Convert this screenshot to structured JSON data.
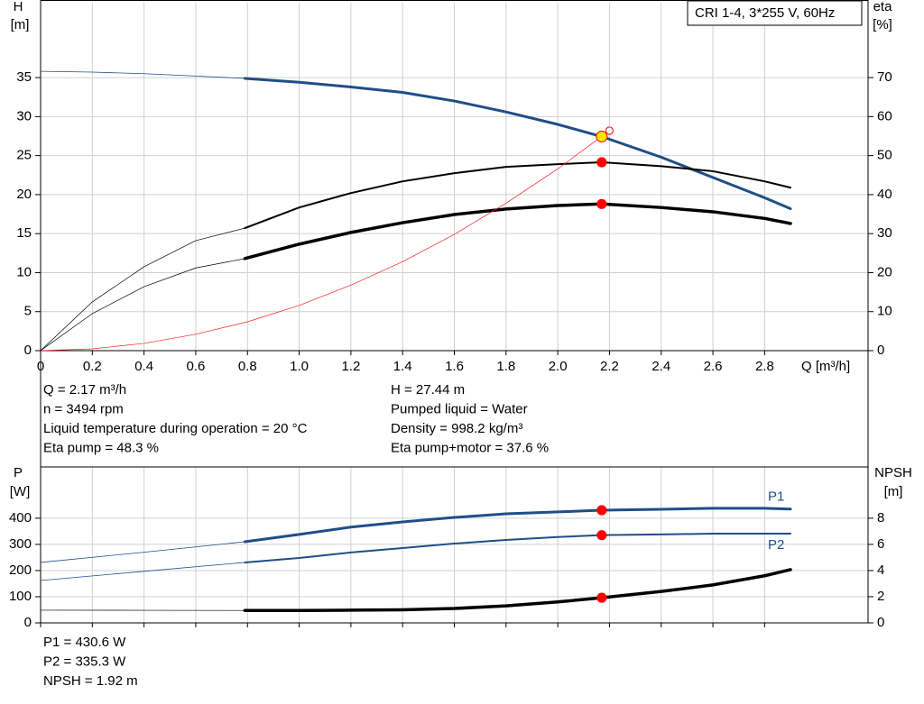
{
  "chart_data": [
    {
      "type": "line",
      "title": "CRI 1-4, 3*255 V, 60Hz",
      "ylabel": [
        "H",
        "[m]"
      ],
      "y2label": [
        "eta",
        "[%]"
      ],
      "xlabel": "Q [m³/h]",
      "xlim": [
        0,
        3.2
      ],
      "xticks": [
        0,
        0.2,
        0.4,
        0.6,
        0.8,
        {
          "value": 1,
          "label": "1.0"
        },
        1.2,
        1.4,
        1.6,
        1.8,
        {
          "value": 2,
          "label": "2.0"
        },
        2.2,
        2.4,
        2.6,
        2.8
      ],
      "show_xtick_labels": true,
      "ylim": [
        0,
        44.6
      ],
      "yticks": [
        0,
        5,
        10,
        15,
        20,
        25,
        30,
        35
      ],
      "y2lim": [
        0,
        89.2
      ],
      "y2ticks": [
        0,
        10,
        20,
        30,
        40,
        50,
        60,
        70
      ],
      "grid": true,
      "series": [
        {
          "color": "#1f4e87",
          "width": 0.8,
          "x": [
            0,
            0.2,
            0.4,
            0.6,
            0.79
          ],
          "values": [
            35.8,
            35.7,
            35.5,
            35.2,
            34.9
          ]
        },
        {
          "color": "#1f4e87",
          "width": 3,
          "x": [
            0.79,
            1,
            1.2,
            1.4,
            1.6,
            1.8,
            2,
            2.17,
            2.4,
            2.6,
            2.8,
            2.9
          ],
          "values": [
            34.9,
            34.4,
            33.8,
            33.1,
            32,
            30.6,
            29,
            27.44,
            24.8,
            22.2,
            19.6,
            18.2
          ]
        },
        {
          "color": "#000000",
          "width": 0.7,
          "axis": "y2",
          "x": [
            0,
            0.2,
            0.4,
            0.6,
            0.79
          ],
          "values": [
            0,
            12.5,
            21.5,
            28.2,
            31.4
          ]
        },
        {
          "color": "#000000",
          "width": 2,
          "axis": "y2",
          "x": [
            0.79,
            1,
            1.2,
            1.4,
            1.6,
            1.8,
            2,
            2.17,
            2.4,
            2.6,
            2.8,
            2.9
          ],
          "values": [
            31.4,
            36.7,
            40.4,
            43.4,
            45.5,
            47.1,
            47.8,
            48.3,
            47.3,
            46,
            43.4,
            41.8
          ]
        },
        {
          "color": "#000000",
          "width": 0.7,
          "axis": "y2",
          "x": [
            0,
            0.2,
            0.4,
            0.6,
            0.79
          ],
          "values": [
            0,
            9.5,
            16.4,
            21.2,
            23.6
          ]
        },
        {
          "color": "#000000",
          "width": 3.5,
          "axis": "y2",
          "x": [
            0.79,
            1,
            1.2,
            1.4,
            1.6,
            1.8,
            2,
            2.17,
            2.4,
            2.6,
            2.8,
            2.9
          ],
          "values": [
            23.6,
            27.3,
            30.3,
            32.8,
            34.9,
            36.3,
            37.2,
            37.6,
            36.7,
            35.6,
            33.9,
            32.6
          ]
        },
        {
          "color": "#ee2222",
          "width": 0.7,
          "x": [
            0,
            0.2,
            0.4,
            0.6,
            0.8,
            1,
            1.2,
            1.4,
            1.6,
            1.8,
            2,
            2.2
          ],
          "values": [
            0,
            0.23,
            0.93,
            2.1,
            3.7,
            5.8,
            8.4,
            11.4,
            14.9,
            18.9,
            23.3,
            28.2
          ]
        }
      ],
      "points": [
        {
          "x": 2.2,
          "y": 28.2,
          "color": "#ffffff",
          "edge": "#ee2222",
          "size": 4
        },
        {
          "x": 2.17,
          "y": 27.44,
          "color": "#f5e600",
          "edge": "#ee2222",
          "size": 6
        },
        {
          "x": 2.17,
          "y": 48.3,
          "axis": "y2",
          "color": "#ff0000",
          "edge": "#ff0000",
          "size": 5
        },
        {
          "x": 2.17,
          "y": 37.6,
          "axis": "y2",
          "color": "#ff0000",
          "edge": "#ff0000",
          "size": 5
        }
      ],
      "annotations": [
        "Q = 2.17 m³/h",
        "n = 3494 rpm",
        "Liquid temperature during operation = 20 °C",
        "Eta pump = 48.3 %",
        "H = 27.44 m",
        "Pumped liquid = Water",
        "Density = 998.2 kg/m³",
        "Eta pump+motor = 37.6 %"
      ]
    },
    {
      "type": "line",
      "ylabel": [
        "P",
        "[W]"
      ],
      "y2label": [
        "NPSH",
        "[m]"
      ],
      "xlim": [
        0,
        3.2
      ],
      "xticks": [
        0,
        0.2,
        0.4,
        0.6,
        0.8,
        1,
        1.2,
        1.4,
        1.6,
        1.8,
        2,
        2.2,
        2.4,
        2.6,
        2.8
      ],
      "show_xtick_labels": false,
      "ylim": [
        0,
        596
      ],
      "yticks": [
        0,
        100,
        200,
        300,
        400
      ],
      "y2lim": [
        0,
        11.92
      ],
      "y2ticks": [
        0,
        2,
        4,
        6,
        8
      ],
      "grid": true,
      "series": [
        {
          "color": "#1f4e87",
          "width": 0.8,
          "x": [
            0,
            0.4,
            0.79
          ],
          "values": [
            231,
            270,
            310
          ]
        },
        {
          "name": "P1",
          "label_pos": "above",
          "color": "#1f4e87",
          "width": 3,
          "x": [
            0.79,
            1,
            1.2,
            1.4,
            1.6,
            1.8,
            2,
            2.17,
            2.4,
            2.6,
            2.8,
            2.9
          ],
          "values": [
            310,
            338,
            366,
            386,
            403,
            417,
            424,
            430.6,
            434,
            438,
            438,
            435
          ]
        },
        {
          "color": "#1f4e87",
          "width": 0.8,
          "x": [
            0,
            0.4,
            0.79
          ],
          "values": [
            162,
            197,
            231
          ]
        },
        {
          "name": "P2",
          "label_pos": "below",
          "color": "#1f4e87",
          "width": 2,
          "x": [
            0.79,
            1,
            1.2,
            1.4,
            1.6,
            1.8,
            2,
            2.17,
            2.4,
            2.6,
            2.8,
            2.9
          ],
          "values": [
            231,
            248,
            269,
            286,
            303,
            317,
            328,
            335.3,
            338,
            341,
            341,
            341
          ]
        },
        {
          "color": "#000000",
          "width": 0.7,
          "axis": "y2",
          "x": [
            0,
            0.4,
            0.79
          ],
          "values": [
            0.97,
            0.96,
            0.95
          ]
        },
        {
          "color": "#000000",
          "width": 3.5,
          "axis": "y2",
          "x": [
            0.79,
            1,
            1.2,
            1.4,
            1.6,
            1.8,
            2,
            2.17,
            2.4,
            2.6,
            2.8,
            2.9
          ],
          "values": [
            0.95,
            0.95,
            0.97,
            1,
            1.1,
            1.3,
            1.6,
            1.92,
            2.4,
            2.9,
            3.6,
            4.07
          ]
        }
      ],
      "points": [
        {
          "x": 2.17,
          "y": 430.6,
          "color": "#ff0000",
          "edge": "#ff0000",
          "size": 5
        },
        {
          "x": 2.17,
          "y": 335.3,
          "color": "#ff0000",
          "edge": "#ff0000",
          "size": 5
        },
        {
          "x": 2.17,
          "y": 1.92,
          "axis": "y2",
          "color": "#ff0000",
          "edge": "#ff0000",
          "size": 5
        }
      ],
      "annotations": [
        "P1 = 430.6 W",
        "P2 = 335.3 W",
        "NPSH = 1.92 m"
      ]
    }
  ]
}
